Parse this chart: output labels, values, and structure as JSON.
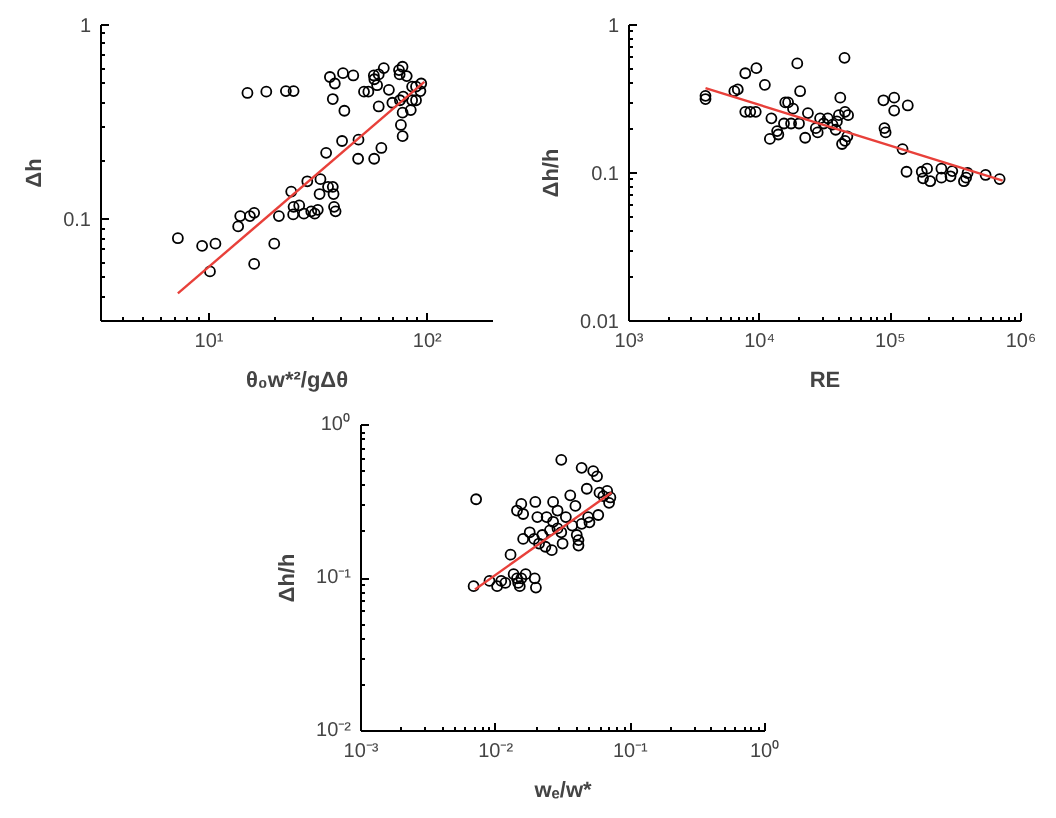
{
  "chart_data": [
    {
      "type": "scatter",
      "xlabel": "θ₀w*²/gΔθ",
      "ylabel": "Δh",
      "log": "xy",
      "grid": false,
      "xlim": [
        3.2,
        200
      ],
      "ylim": [
        0.03,
        1
      ],
      "xticks": [
        {
          "value": 4,
          "label": null
        },
        {
          "value": 5,
          "label": null
        },
        {
          "value": 6,
          "label": null
        },
        {
          "value": 7,
          "label": null
        },
        {
          "value": 8,
          "label": null
        },
        {
          "value": 9,
          "label": null
        },
        {
          "value": 10,
          "label": "10¹"
        },
        {
          "value": 20,
          "label": null
        },
        {
          "value": 30,
          "label": null
        },
        {
          "value": 40,
          "label": null
        },
        {
          "value": 50,
          "label": null
        },
        {
          "value": 60,
          "label": null
        },
        {
          "value": 70,
          "label": null
        },
        {
          "value": 80,
          "label": null
        },
        {
          "value": 90,
          "label": null
        },
        {
          "value": 100,
          "label": "10²"
        }
      ],
      "yticks": [
        {
          "value": 0.04,
          "label": null
        },
        {
          "value": 0.05,
          "label": null
        },
        {
          "value": 0.06,
          "label": null
        },
        {
          "value": 0.07,
          "label": null
        },
        {
          "value": 0.08,
          "label": null
        },
        {
          "value": 0.09,
          "label": null
        },
        0.1,
        {
          "value": 0.2,
          "label": null
        },
        {
          "value": 0.3,
          "label": null
        },
        {
          "value": 0.4,
          "label": null
        },
        {
          "value": 0.5,
          "label": null
        },
        {
          "value": 0.6,
          "label": null
        },
        {
          "value": 0.7,
          "label": null
        },
        {
          "value": 0.8,
          "label": null
        },
        {
          "value": 0.9,
          "label": null
        },
        1
      ],
      "series": [
        {
          "type": "scatter",
          "marker": "circle",
          "color": "#000000",
          "x": [
            7.2,
            9.3,
            10.7,
            10.1,
            13.6,
            13.9,
            15.4,
            16.1,
            16.1,
            15.0,
            18.3,
            22.5,
            24.4,
            19.9,
            20.9,
            23.8,
            24.4,
            24.3,
            25.9,
            27.2,
            28.2,
            29.4,
            30.5,
            31.5,
            32.1,
            32.4,
            34.4,
            35.1,
            36.9,
            37.2,
            37.4,
            38.0,
            36.9,
            35.8,
            37.7,
            41.1,
            41.7,
            40.7,
            45.8,
            48.2,
            48.4,
            51.3,
            53.7,
            56.9,
            57.1,
            57.2,
            58.9,
            59.9,
            59.9,
            61.6,
            63.2,
            66.7,
            69.2,
            74.2,
            74.9,
            74.7,
            75.7,
            77.1,
            77.1,
            77.6,
            77.0,
            80.5,
            85.2,
            85.2,
            84.0,
            88.8,
            88.8,
            93.8,
            93.0
          ],
          "values": [
            0.08,
            0.073,
            0.075,
            0.054,
            0.092,
            0.104,
            0.104,
            0.108,
            0.059,
            0.447,
            0.454,
            0.457,
            0.457,
            0.075,
            0.104,
            0.139,
            0.116,
            0.106,
            0.118,
            0.107,
            0.157,
            0.11,
            0.107,
            0.112,
            0.135,
            0.161,
            0.22,
            0.147,
            0.147,
            0.135,
            0.116,
            0.11,
            0.416,
            0.54,
            0.5,
            0.565,
            0.362,
            0.253,
            0.55,
            0.205,
            0.257,
            0.454,
            0.454,
            0.55,
            0.205,
            0.526,
            0.49,
            0.557,
            0.381,
            0.233,
            0.6,
            0.464,
            0.398,
            0.586,
            0.41,
            0.557,
            0.306,
            0.268,
            0.354,
            0.428,
            0.61,
            0.546,
            0.41,
            0.482,
            0.365,
            0.482,
            0.41,
            0.5,
            0.457
          ]
        },
        {
          "type": "line",
          "marker": "none",
          "color": "#e8403a",
          "x": [
            7.2,
            96.9
          ],
          "values": [
            0.0416,
            0.51
          ]
        }
      ]
    },
    {
      "type": "scatter",
      "xlabel": "RE",
      "ylabel": "Δh/h",
      "log": "xy",
      "grid": false,
      "xlim": [
        1000,
        1000000
      ],
      "ylim": [
        0.01,
        1
      ],
      "xticks": [
        {
          "value": 1000,
          "label": "10³"
        },
        {
          "value": 2000,
          "label": null
        },
        {
          "value": 3000,
          "label": null
        },
        {
          "value": 4000,
          "label": null
        },
        {
          "value": 5000,
          "label": null
        },
        {
          "value": 6000,
          "label": null
        },
        {
          "value": 7000,
          "label": null
        },
        {
          "value": 8000,
          "label": null
        },
        {
          "value": 9000,
          "label": null
        },
        {
          "value": 10000,
          "label": "10⁴"
        },
        {
          "value": 20000,
          "label": null
        },
        {
          "value": 30000,
          "label": null
        },
        {
          "value": 40000,
          "label": null
        },
        {
          "value": 50000,
          "label": null
        },
        {
          "value": 60000,
          "label": null
        },
        {
          "value": 70000,
          "label": null
        },
        {
          "value": 80000,
          "label": null
        },
        {
          "value": 90000,
          "label": null
        },
        {
          "value": 100000,
          "label": "10⁵"
        },
        {
          "value": 200000,
          "label": null
        },
        {
          "value": 300000,
          "label": null
        },
        {
          "value": 400000,
          "label": null
        },
        {
          "value": 500000,
          "label": null
        },
        {
          "value": 600000,
          "label": null
        },
        {
          "value": 700000,
          "label": null
        },
        {
          "value": 800000,
          "label": null
        },
        {
          "value": 900000,
          "label": null
        },
        {
          "value": 1000000,
          "label": "10⁶"
        }
      ],
      "yticks": [
        0.01,
        {
          "value": 0.02,
          "label": null
        },
        {
          "value": 0.03,
          "label": null
        },
        {
          "value": 0.04,
          "label": null
        },
        {
          "value": 0.05,
          "label": null
        },
        {
          "value": 0.06,
          "label": null
        },
        {
          "value": 0.07,
          "label": null
        },
        {
          "value": 0.08,
          "label": null
        },
        {
          "value": 0.09,
          "label": null
        },
        0.1,
        {
          "value": 0.2,
          "label": null
        },
        {
          "value": 0.3,
          "label": null
        },
        {
          "value": 0.4,
          "label": null
        },
        {
          "value": 0.5,
          "label": null
        },
        {
          "value": 0.6,
          "label": null
        },
        {
          "value": 0.7,
          "label": null
        },
        {
          "value": 0.8,
          "label": null
        },
        {
          "value": 0.9,
          "label": null
        },
        1
      ],
      "series": [
        {
          "type": "scatter",
          "marker": "circle",
          "color": "#000000",
          "x": [
            3850,
            3850,
            6400,
            6800,
            7760,
            7760,
            8470,
            9330,
            9440,
            10960,
            11970,
            12300,
            13600,
            13900,
            15350,
            15700,
            16500,
            17400,
            18000,
            19400,
            20000,
            20400,
            22300,
            23400,
            26900,
            27800,
            29000,
            30900,
            33200,
            36100,
            38200,
            39000,
            40400,
            41400,
            42700,
            44600,
            45000,
            45000,
            46900,
            47500,
            90200,
            88500,
            92000,
            107000,
            107000,
            136000,
            124000,
            133000,
            174000,
            178000,
            191000,
            202000,
            246000,
            246000,
            289000,
            298000,
            366000,
            380000,
            390000,
            536000,
            686000
          ],
          "values": [
            0.332,
            0.316,
            0.357,
            0.367,
            0.472,
            0.259,
            0.259,
            0.259,
            0.511,
            0.394,
            0.17,
            0.234,
            0.192,
            0.182,
            0.216,
            0.3,
            0.3,
            0.216,
            0.272,
            0.55,
            0.216,
            0.357,
            0.173,
            0.254,
            0.201,
            0.188,
            0.234,
            0.216,
            0.234,
            0.212,
            0.196,
            0.223,
            0.246,
            0.323,
            0.157,
            0.6,
            0.259,
            0.165,
            0.177,
            0.246,
            0.201,
            0.31,
            0.188,
            0.323,
            0.264,
            0.286,
            0.145,
            0.102,
            0.102,
            0.092,
            0.107,
            0.088,
            0.107,
            0.093,
            0.095,
            0.103,
            0.088,
            0.093,
            0.1,
            0.097,
            0.091
          ]
        },
        {
          "type": "line",
          "marker": "none",
          "color": "#e8403a",
          "x": [
            3850,
            724000
          ],
          "values": [
            0.375,
            0.0887
          ]
        }
      ]
    },
    {
      "type": "scatter",
      "xlabel": "wₑ/w*",
      "ylabel": "Δh/h",
      "log": "xy",
      "grid": false,
      "xlim": [
        0.001,
        1
      ],
      "ylim": [
        0.01,
        1
      ],
      "xticks": [
        {
          "value": 0.001,
          "label": "10⁻³"
        },
        {
          "value": 0.002,
          "label": null
        },
        {
          "value": 0.003,
          "label": null
        },
        {
          "value": 0.004,
          "label": null
        },
        {
          "value": 0.005,
          "label": null
        },
        {
          "value": 0.006,
          "label": null
        },
        {
          "value": 0.007,
          "label": null
        },
        {
          "value": 0.008,
          "label": null
        },
        {
          "value": 0.009,
          "label": null
        },
        {
          "value": 0.01,
          "label": "10⁻²"
        },
        {
          "value": 0.02,
          "label": null
        },
        {
          "value": 0.03,
          "label": null
        },
        {
          "value": 0.04,
          "label": null
        },
        {
          "value": 0.05,
          "label": null
        },
        {
          "value": 0.06,
          "label": null
        },
        {
          "value": 0.07,
          "label": null
        },
        {
          "value": 0.08,
          "label": null
        },
        {
          "value": 0.09,
          "label": null
        },
        {
          "value": 0.1,
          "label": "10⁻¹"
        },
        {
          "value": 0.2,
          "label": null
        },
        {
          "value": 0.3,
          "label": null
        },
        {
          "value": 0.4,
          "label": null
        },
        {
          "value": 0.5,
          "label": null
        },
        {
          "value": 0.6,
          "label": null
        },
        {
          "value": 0.7,
          "label": null
        },
        {
          "value": 0.8,
          "label": null
        },
        {
          "value": 0.9,
          "label": null
        },
        {
          "value": 1,
          "label": "10⁰"
        }
      ],
      "yticks": [
        {
          "value": 0.01,
          "label": "10⁻²"
        },
        {
          "value": 0.02,
          "label": null
        },
        {
          "value": 0.03,
          "label": null
        },
        {
          "value": 0.04,
          "label": null
        },
        {
          "value": 0.05,
          "label": null
        },
        {
          "value": 0.06,
          "label": null
        },
        {
          "value": 0.07,
          "label": null
        },
        {
          "value": 0.08,
          "label": null
        },
        {
          "value": 0.09,
          "label": null
        },
        {
          "value": 0.1,
          "label": "10⁻¹"
        },
        {
          "value": 0.2,
          "label": null
        },
        {
          "value": 0.3,
          "label": null
        },
        {
          "value": 0.4,
          "label": null
        },
        {
          "value": 0.5,
          "label": null
        },
        {
          "value": 0.6,
          "label": null
        },
        {
          "value": 0.7,
          "label": null
        },
        {
          "value": 0.8,
          "label": null
        },
        {
          "value": 0.9,
          "label": null
        },
        {
          "value": 1,
          "label": "10⁰"
        }
      ],
      "series": [
        {
          "type": "scatter",
          "marker": "circle",
          "color": "#000000",
          "x": [
            0.00686,
            0.00716,
            0.009,
            0.01025,
            0.011,
            0.0118,
            0.0129,
            0.0136,
            0.0144,
            0.0147,
            0.0151,
            0.0155,
            0.0144,
            0.0155,
            0.016,
            0.016,
            0.0167,
            0.0179,
            0.0193,
            0.0197,
            0.0195,
            0.0199,
            0.0204,
            0.021,
            0.0222,
            0.0234,
            0.0239,
            0.0253,
            0.0261,
            0.0267,
            0.0267,
            0.0288,
            0.0288,
            0.0307,
            0.0307,
            0.0314,
            0.0332,
            0.0358,
            0.037,
            0.0391,
            0.04,
            0.0412,
            0.0412,
            0.0435,
            0.0435,
            0.0475,
            0.0486,
            0.0497,
            0.053,
            0.0566,
            0.0578,
            0.059,
            0.063,
            0.0673,
            0.0695,
            0.0711
          ],
          "values": [
            0.0884,
            0.327,
            0.0957,
            0.0884,
            0.0957,
            0.0929,
            0.142,
            0.106,
            0.0995,
            0.0929,
            0.0884,
            0.0995,
            0.276,
            0.305,
            0.262,
            0.18,
            0.106,
            0.199,
            0.18,
            0.314,
            0.0995,
            0.0866,
            0.25,
            0.168,
            0.191,
            0.16,
            0.25,
            0.205,
            0.152,
            0.233,
            0.314,
            0.276,
            0.211,
            0.199,
            0.592,
            0.168,
            0.25,
            0.347,
            0.22,
            0.296,
            0.191,
            0.177,
            0.163,
            0.226,
            0.525,
            0.383,
            0.25,
            0.231,
            0.5,
            0.462,
            0.258,
            0.361,
            0.343,
            0.371,
            0.31,
            0.336
          ]
        },
        {
          "type": "line",
          "marker": "none",
          "color": "#e8403a",
          "x": [
            0.00702,
            0.0726
          ],
          "values": [
            0.0841,
            0.362
          ]
        }
      ]
    }
  ]
}
